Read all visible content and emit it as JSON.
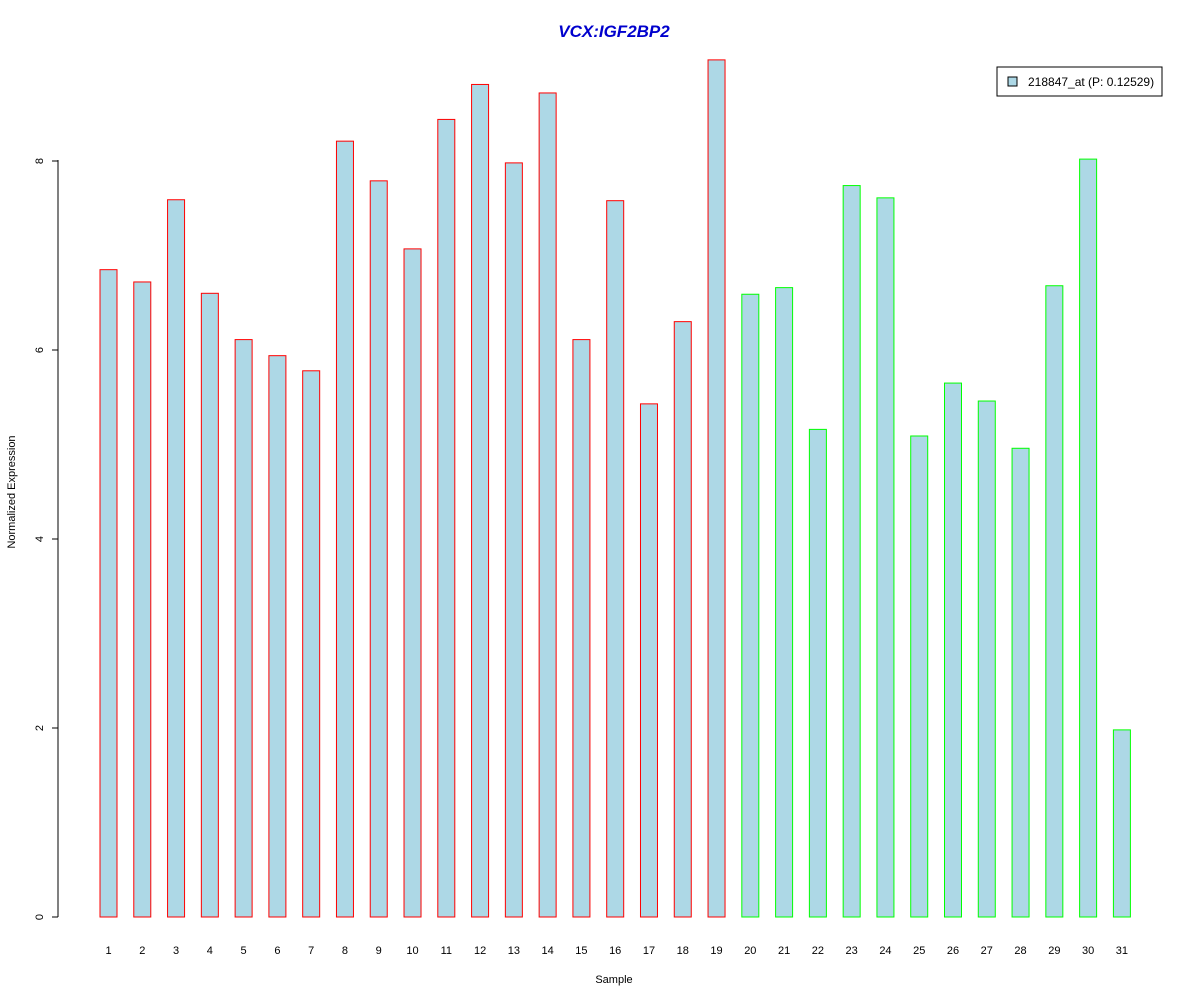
{
  "chart_data": {
    "type": "bar",
    "title": "VCX:IGF2BP2",
    "xlabel": "Sample",
    "ylabel": "Normalized Expression",
    "categories": [
      "1",
      "2",
      "3",
      "4",
      "5",
      "6",
      "7",
      "8",
      "9",
      "10",
      "11",
      "12",
      "13",
      "14",
      "15",
      "16",
      "17",
      "18",
      "19",
      "20",
      "21",
      "22",
      "23",
      "24",
      "25",
      "26",
      "27",
      "28",
      "29",
      "30",
      "31"
    ],
    "series": [
      {
        "name": "218847_at (P: 0.12529)",
        "values": [
          6.85,
          6.72,
          7.59,
          6.6,
          6.11,
          5.94,
          5.78,
          8.21,
          7.79,
          7.07,
          8.44,
          8.81,
          7.98,
          8.72,
          6.11,
          7.58,
          5.43,
          6.3,
          9.07,
          6.59,
          6.66,
          5.16,
          7.74,
          7.61,
          5.09,
          5.65,
          5.46,
          4.96,
          6.68,
          8.02,
          1.98
        ]
      }
    ],
    "group_a_count": 19,
    "yticks": [
      0,
      2,
      4,
      6,
      8
    ],
    "ylim": [
      0,
      9.2
    ],
    "colors": {
      "bar_fill": "#add8e6",
      "group_a_border": "#ff0000",
      "group_b_border": "#00ff00",
      "title": "#0000cd"
    },
    "legend": {
      "position": "top-right"
    },
    "grid": false
  }
}
